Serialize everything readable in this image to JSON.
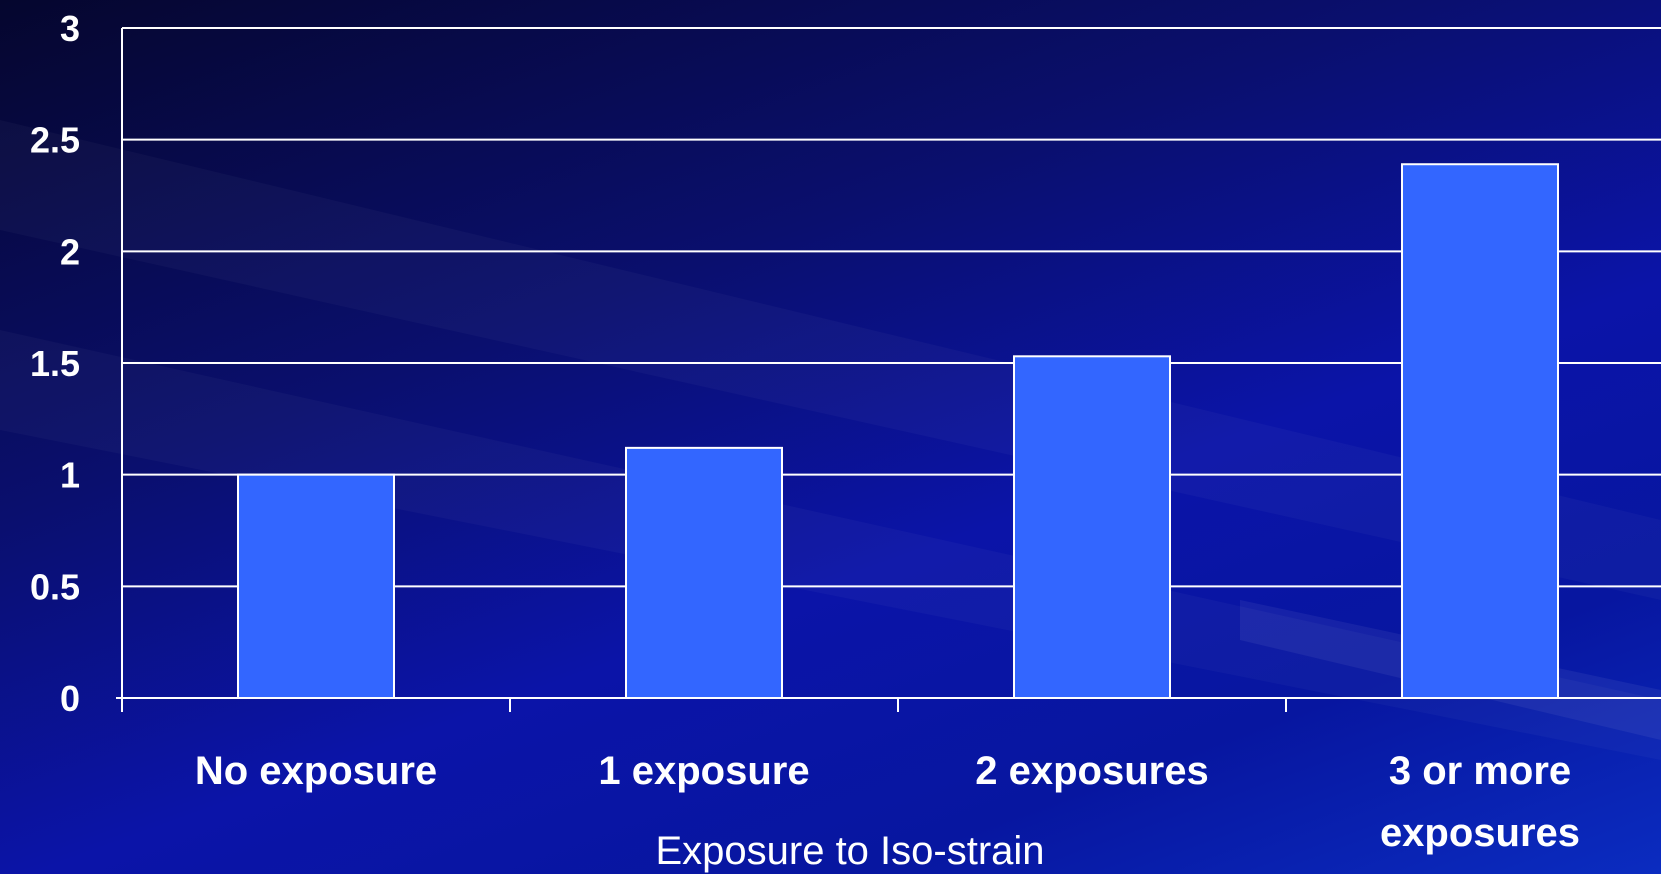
{
  "chart_data": {
    "type": "bar",
    "categories": [
      "No exposure",
      "1 exposure",
      "2 exposures",
      "3 or more exposures"
    ],
    "category_lines": [
      [
        "No exposure"
      ],
      [
        "1 exposure"
      ],
      [
        "2 exposures"
      ],
      [
        "3 or more",
        "exposures"
      ]
    ],
    "values": [
      1.0,
      1.12,
      1.53,
      2.39
    ],
    "xlabel": "Exposure to Iso-strain",
    "ylabel": "",
    "ylim": [
      0,
      3
    ],
    "yticks": [
      "0",
      "0.5",
      "1",
      "1.5",
      "2",
      "2.5",
      "3"
    ],
    "grid": true,
    "legend": "none",
    "colors": {
      "bar_fill": "#3366ff",
      "bar_stroke": "#ffffff",
      "grid": "#ffffff",
      "text": "#ffffff"
    }
  }
}
